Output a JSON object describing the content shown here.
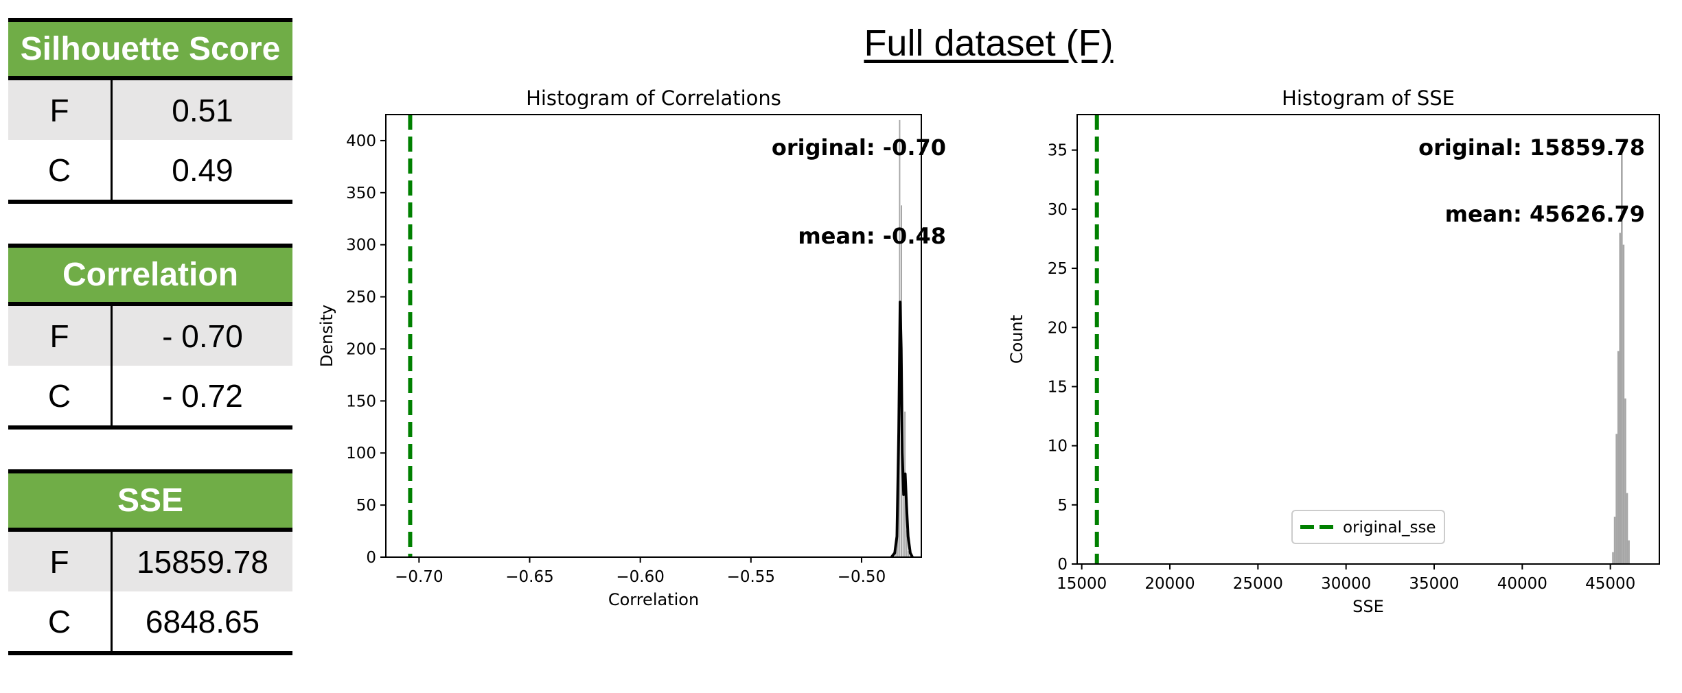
{
  "page_title": "Full dataset (F)",
  "tables": [
    {
      "header": "Silhouette Score",
      "rows": [
        {
          "key": "F",
          "value": "0.51"
        },
        {
          "key": "C",
          "value": "0.49"
        }
      ]
    },
    {
      "header": "Correlation",
      "rows": [
        {
          "key": "F",
          "value": "- 0.70"
        },
        {
          "key": "C",
          "value": "- 0.72"
        }
      ]
    },
    {
      "header": "SSE",
      "rows": [
        {
          "key": "F",
          "value": "15859.78"
        },
        {
          "key": "C",
          "value": "6848.65"
        }
      ]
    }
  ],
  "colors": {
    "table_header": "#70ad47",
    "row_shade": "#e7e6e6",
    "reference_line": "#008000",
    "histogram": "#a6a6a6",
    "kde": "#000000"
  },
  "chart_data": [
    {
      "type": "histogram",
      "title": "Histogram of Correlations",
      "xlabel": "Correlation",
      "ylabel": "Density",
      "xlim": [
        -0.715,
        -0.473
      ],
      "ylim": [
        0,
        425
      ],
      "xticks": [
        -0.7,
        -0.65,
        -0.6,
        -0.55,
        -0.5
      ],
      "xtick_labels": [
        "−0.70",
        "−0.65",
        "−0.60",
        "−0.55",
        "−0.50"
      ],
      "yticks": [
        0,
        50,
        100,
        150,
        200,
        250,
        300,
        350,
        400
      ],
      "vline": {
        "x": -0.704,
        "style": "dashed",
        "color": "#008000"
      },
      "bins": [
        {
          "x0": -0.4848,
          "x1": -0.484,
          "y": 8
        },
        {
          "x0": -0.484,
          "x1": -0.4832,
          "y": 40
        },
        {
          "x0": -0.4832,
          "x1": -0.4824,
          "y": 420
        },
        {
          "x0": -0.4824,
          "x1": -0.4816,
          "y": 338
        },
        {
          "x0": -0.4816,
          "x1": -0.4808,
          "y": 70
        },
        {
          "x0": -0.4808,
          "x1": -0.48,
          "y": 140
        },
        {
          "x0": -0.48,
          "x1": -0.4792,
          "y": 26
        },
        {
          "x0": -0.4792,
          "x1": -0.4784,
          "y": 6
        }
      ],
      "kde": {
        "x": [
          -0.4865,
          -0.485,
          -0.484,
          -0.4832,
          -0.4826,
          -0.4821,
          -0.4816,
          -0.481,
          -0.4803,
          -0.4797,
          -0.479,
          -0.478,
          -0.477
        ],
        "y": [
          0,
          4,
          20,
          120,
          245,
          200,
          100,
          60,
          80,
          50,
          20,
          4,
          0
        ]
      },
      "annotations": [
        "original: -0.70",
        "mean: -0.48"
      ]
    },
    {
      "type": "histogram",
      "title": "Histogram of SSE",
      "xlabel": "SSE",
      "ylabel": "Count",
      "xlim": [
        14740,
        47780
      ],
      "ylim": [
        0,
        38
      ],
      "xticks": [
        15000,
        20000,
        25000,
        30000,
        35000,
        40000,
        45000
      ],
      "yticks": [
        0,
        5,
        10,
        15,
        20,
        25,
        30,
        35
      ],
      "vline": {
        "x": 15859.78,
        "style": "dashed",
        "color": "#008000"
      },
      "bins": [
        {
          "x0": 45100,
          "x1": 45200,
          "y": 1
        },
        {
          "x0": 45200,
          "x1": 45300,
          "y": 4
        },
        {
          "x0": 45300,
          "x1": 45400,
          "y": 11
        },
        {
          "x0": 45400,
          "x1": 45500,
          "y": 18
        },
        {
          "x0": 45500,
          "x1": 45600,
          "y": 28
        },
        {
          "x0": 45600,
          "x1": 45700,
          "y": 35
        },
        {
          "x0": 45700,
          "x1": 45800,
          "y": 27
        },
        {
          "x0": 45800,
          "x1": 45900,
          "y": 14
        },
        {
          "x0": 45900,
          "x1": 46000,
          "y": 6
        },
        {
          "x0": 46000,
          "x1": 46100,
          "y": 2
        }
      ],
      "annotations": [
        "original: 15859.78",
        "mean: 45626.79"
      ],
      "legend": {
        "label": "original_sse",
        "position": "bottom-center"
      }
    }
  ]
}
